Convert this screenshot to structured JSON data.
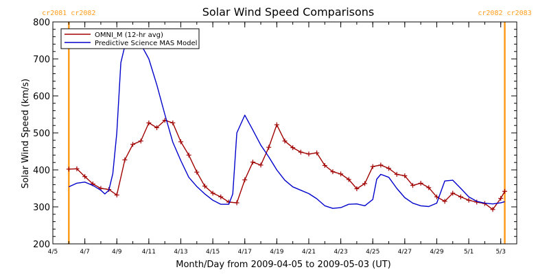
{
  "chart_data": {
    "type": "line",
    "title": "Solar Wind Speed Comparisons",
    "xlabel": "Month/Day from 2009-04-05 to 2009-05-03 (UT)",
    "ylabel": "Solar Wind Speed (km/s)",
    "ylim": [
      200,
      800
    ],
    "xlim": [
      "2009-04-05",
      "2009-05-04"
    ],
    "yticks": [
      200,
      300,
      400,
      500,
      600,
      700,
      800
    ],
    "xticks": [
      "4/5",
      "4/7",
      "4/9",
      "4/11",
      "4/13",
      "4/15",
      "4/17",
      "4/19",
      "4/21",
      "4/23",
      "4/25",
      "4/27",
      "4/29",
      "5/1",
      "5/3"
    ],
    "grid": false,
    "legend_position": "top-left",
    "colors": {
      "omni": "#a00000",
      "model": "#0000cc",
      "rotation": "#ff9c1a"
    },
    "carrington_markers": [
      {
        "date": "2009-04-06 00:00",
        "label": "cr2081 cr2082"
      },
      {
        "date": "2009-05-03 06:00",
        "label": "cr2082 cr2083"
      }
    ],
    "series": [
      {
        "name": "OMNI_M (12-hr avg)",
        "markers": true,
        "points": [
          [
            "2009-04-06 00:00",
            402
          ],
          [
            "2009-04-06 12:00",
            403
          ],
          [
            "2009-04-07 00:00",
            382
          ],
          [
            "2009-04-07 12:00",
            362
          ],
          [
            "2009-04-08 00:00",
            350
          ],
          [
            "2009-04-08 12:00",
            347
          ],
          [
            "2009-04-09 00:00",
            332
          ],
          [
            "2009-04-09 12:00",
            427
          ],
          [
            "2009-04-10 00:00",
            469
          ],
          [
            "2009-04-10 12:00",
            478
          ],
          [
            "2009-04-11 00:00",
            527
          ],
          [
            "2009-04-11 12:00",
            514
          ],
          [
            "2009-04-12 00:00",
            534
          ],
          [
            "2009-04-12 12:00",
            527
          ],
          [
            "2009-04-13 00:00",
            476
          ],
          [
            "2009-04-13 12:00",
            440
          ],
          [
            "2009-04-14 00:00",
            394
          ],
          [
            "2009-04-14 12:00",
            356
          ],
          [
            "2009-04-15 00:00",
            337
          ],
          [
            "2009-04-15 12:00",
            327
          ],
          [
            "2009-04-16 00:00",
            313
          ],
          [
            "2009-04-16 12:00",
            311
          ],
          [
            "2009-04-17 00:00",
            373
          ],
          [
            "2009-04-17 12:00",
            421
          ],
          [
            "2009-04-18 00:00",
            413
          ],
          [
            "2009-04-18 12:00",
            461
          ],
          [
            "2009-04-19 00:00",
            522
          ],
          [
            "2009-04-19 12:00",
            478
          ],
          [
            "2009-04-20 00:00",
            460
          ],
          [
            "2009-04-20 12:00",
            448
          ],
          [
            "2009-04-21 00:00",
            443
          ],
          [
            "2009-04-21 12:00",
            446
          ],
          [
            "2009-04-22 00:00",
            412
          ],
          [
            "2009-04-22 12:00",
            395
          ],
          [
            "2009-04-23 00:00",
            389
          ],
          [
            "2009-04-23 12:00",
            374
          ],
          [
            "2009-04-24 00:00",
            349
          ],
          [
            "2009-04-24 12:00",
            363
          ],
          [
            "2009-04-25 00:00",
            409
          ],
          [
            "2009-04-25 12:00",
            413
          ],
          [
            "2009-04-26 00:00",
            404
          ],
          [
            "2009-04-26 12:00",
            388
          ],
          [
            "2009-04-27 00:00",
            384
          ],
          [
            "2009-04-27 12:00",
            358
          ],
          [
            "2009-04-28 00:00",
            364
          ],
          [
            "2009-04-28 12:00",
            352
          ],
          [
            "2009-04-29 00:00",
            327
          ],
          [
            "2009-04-29 12:00",
            315
          ],
          [
            "2009-04-30 00:00",
            337
          ],
          [
            "2009-04-30 12:00",
            327
          ],
          [
            "2009-05-01 00:00",
            318
          ],
          [
            "2009-05-01 12:00",
            313
          ],
          [
            "2009-05-02 00:00",
            309
          ],
          [
            "2009-05-02 12:00",
            293
          ],
          [
            "2009-05-03 00:00",
            323
          ],
          [
            "2009-05-03 06:00",
            342
          ]
        ]
      },
      {
        "name": "Predictive Science MAS Model",
        "markers": false,
        "points": [
          [
            "2009-04-06 00:00",
            354
          ],
          [
            "2009-04-06 12:00",
            364
          ],
          [
            "2009-04-07 00:00",
            367
          ],
          [
            "2009-04-07 12:00",
            358
          ],
          [
            "2009-04-08 00:00",
            345
          ],
          [
            "2009-04-08 06:00",
            335
          ],
          [
            "2009-04-08 12:00",
            345
          ],
          [
            "2009-04-08 18:00",
            390
          ],
          [
            "2009-04-09 00:00",
            500
          ],
          [
            "2009-04-09 06:00",
            690
          ],
          [
            "2009-04-09 12:00",
            735
          ],
          [
            "2009-04-10 00:00",
            742
          ],
          [
            "2009-04-10 12:00",
            740
          ],
          [
            "2009-04-11 00:00",
            700
          ],
          [
            "2009-04-11 12:00",
            630
          ],
          [
            "2009-04-12 00:00",
            550
          ],
          [
            "2009-04-12 12:00",
            475
          ],
          [
            "2009-04-13 00:00",
            425
          ],
          [
            "2009-04-13 12:00",
            380
          ],
          [
            "2009-04-14 00:00",
            355
          ],
          [
            "2009-04-14 12:00",
            335
          ],
          [
            "2009-04-15 00:00",
            318
          ],
          [
            "2009-04-15 12:00",
            307
          ],
          [
            "2009-04-16 00:00",
            307
          ],
          [
            "2009-04-16 06:00",
            335
          ],
          [
            "2009-04-16 12:00",
            500
          ],
          [
            "2009-04-17 00:00",
            548
          ],
          [
            "2009-04-17 12:00",
            508
          ],
          [
            "2009-04-18 00:00",
            467
          ],
          [
            "2009-04-18 12:00",
            435
          ],
          [
            "2009-04-19 00:00",
            400
          ],
          [
            "2009-04-19 12:00",
            372
          ],
          [
            "2009-04-20 00:00",
            354
          ],
          [
            "2009-04-20 12:00",
            345
          ],
          [
            "2009-04-21 00:00",
            336
          ],
          [
            "2009-04-21 12:00",
            322
          ],
          [
            "2009-04-22 00:00",
            303
          ],
          [
            "2009-04-22 12:00",
            296
          ],
          [
            "2009-04-23 00:00",
            298
          ],
          [
            "2009-04-23 12:00",
            307
          ],
          [
            "2009-04-24 00:00",
            308
          ],
          [
            "2009-04-24 12:00",
            303
          ],
          [
            "2009-04-25 00:00",
            320
          ],
          [
            "2009-04-25 06:00",
            375
          ],
          [
            "2009-04-25 12:00",
            388
          ],
          [
            "2009-04-26 00:00",
            380
          ],
          [
            "2009-04-26 12:00",
            350
          ],
          [
            "2009-04-27 00:00",
            325
          ],
          [
            "2009-04-27 12:00",
            310
          ],
          [
            "2009-04-28 00:00",
            303
          ],
          [
            "2009-04-28 12:00",
            301
          ],
          [
            "2009-04-29 00:00",
            310
          ],
          [
            "2009-04-29 12:00",
            370
          ],
          [
            "2009-04-30 00:00",
            372
          ],
          [
            "2009-04-30 12:00",
            350
          ],
          [
            "2009-05-01 00:00",
            327
          ],
          [
            "2009-05-01 12:00",
            315
          ],
          [
            "2009-05-02 00:00",
            310
          ],
          [
            "2009-05-02 12:00",
            308
          ],
          [
            "2009-05-03 00:00",
            311
          ],
          [
            "2009-05-03 06:00",
            314
          ]
        ]
      }
    ]
  }
}
